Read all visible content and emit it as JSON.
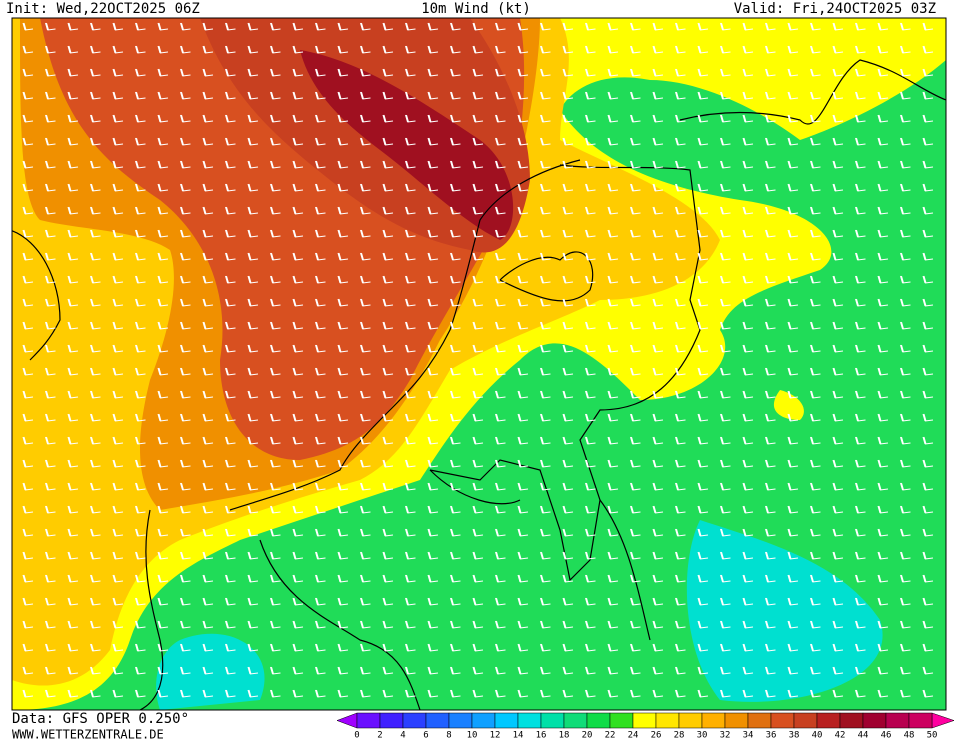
{
  "header": {
    "init": "Init: Wed,22OCT2025 06Z",
    "title": "10m Wind (kt)",
    "valid": "Valid: Fri,24OCT2025 03Z"
  },
  "footer": {
    "source": "Data: GFS OPER 0.250°",
    "site": "WWW.WETTERZENTRALE.DE"
  },
  "colorbar": {
    "ticks": [
      0,
      2,
      4,
      6,
      8,
      10,
      12,
      14,
      16,
      18,
      20,
      22,
      24,
      26,
      28,
      30,
      32,
      34,
      36,
      38,
      40,
      42,
      44,
      46,
      48,
      50
    ],
    "colors": [
      "#6a10ff",
      "#4020ff",
      "#2b40ff",
      "#2060ff",
      "#1a80ff",
      "#10a0ff",
      "#00c8ff",
      "#00e0e0",
      "#00e0a8",
      "#10dc78",
      "#10dc48",
      "#30e020",
      "#ffff00",
      "#ffe600",
      "#ffcc00",
      "#ffb000",
      "#f09000",
      "#e07010",
      "#d85020",
      "#c84020",
      "#b82020",
      "#a01020",
      "#a00030",
      "#b80050",
      "#cc0060"
    ],
    "under": "#a000ff",
    "over": "#ff00a0"
  }
}
